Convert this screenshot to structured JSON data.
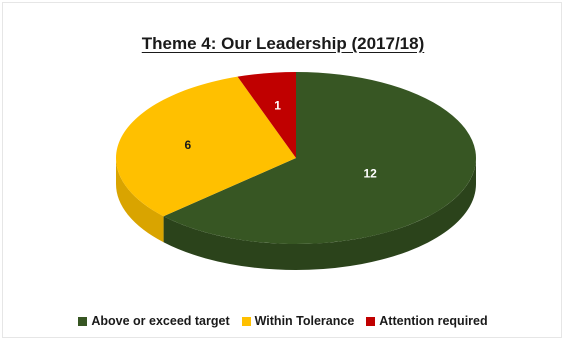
{
  "chart_data": {
    "type": "pie",
    "title": "Theme 4: Our Leadership (2017/18)",
    "categories": [
      "Above or exceed target",
      "Within Tolerance",
      "Attention required"
    ],
    "values": [
      12,
      6,
      1
    ],
    "colors": [
      "#375623",
      "#ffc000",
      "#c00000"
    ],
    "side_colors": [
      "#2b431b",
      "#d9a400",
      "#8f0000"
    ],
    "label_colors": [
      "#ffffff",
      "#1a1a1a",
      "#ffffff"
    ],
    "legend_position": "bottom",
    "style": "3d"
  }
}
